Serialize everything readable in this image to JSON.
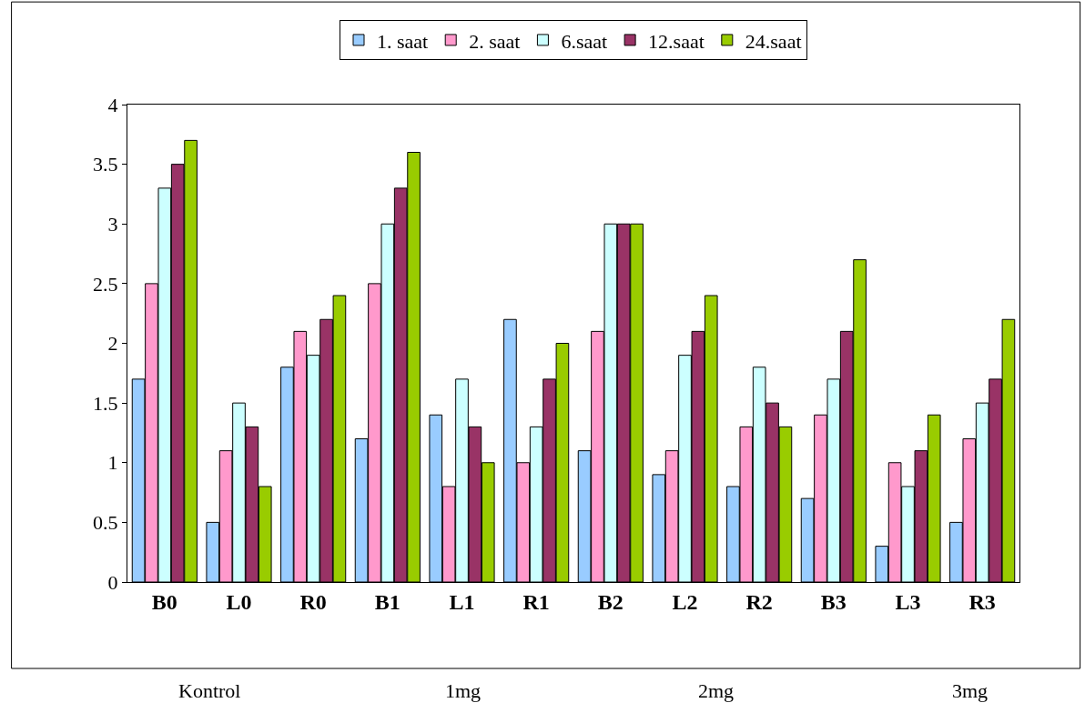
{
  "chart_data": {
    "type": "bar",
    "categories": [
      "B0",
      "L0",
      "R0",
      "B1",
      "L1",
      "R1",
      "B2",
      "L2",
      "R2",
      "B3",
      "L3",
      "R3"
    ],
    "series": [
      {
        "name": "1. saat",
        "color": "#99ccff",
        "values": [
          1.7,
          0.5,
          1.8,
          1.2,
          1.4,
          2.2,
          1.1,
          0.9,
          0.8,
          0.7,
          0.3,
          0.5
        ]
      },
      {
        "name": "2. saat",
        "color": "#ff99cc",
        "values": [
          2.5,
          1.1,
          2.1,
          2.5,
          0.8,
          1.0,
          2.1,
          1.1,
          1.3,
          1.4,
          1.0,
          1.2
        ]
      },
      {
        "name": "6.saat",
        "color": "#ccffff",
        "values": [
          3.3,
          1.5,
          1.9,
          3.0,
          1.7,
          1.3,
          3.0,
          1.9,
          1.8,
          1.7,
          0.8,
          1.5
        ]
      },
      {
        "name": "12.saat",
        "color": "#993366",
        "values": [
          3.5,
          1.3,
          2.2,
          3.3,
          1.3,
          1.7,
          3.0,
          2.1,
          1.5,
          2.1,
          1.1,
          1.7
        ]
      },
      {
        "name": "24.saat",
        "color": "#99cc00",
        "values": [
          3.7,
          0.8,
          2.4,
          3.6,
          1.0,
          2.0,
          3.0,
          2.4,
          1.3,
          2.7,
          1.4,
          2.2
        ]
      }
    ],
    "ylim": [
      0,
      4
    ],
    "yticks": [
      0,
      0.5,
      1,
      1.5,
      2,
      2.5,
      3,
      3.5,
      4
    ],
    "legend": "top",
    "annotations": [
      "Kontrol",
      "1mg",
      "2mg",
      "3mg"
    ]
  }
}
